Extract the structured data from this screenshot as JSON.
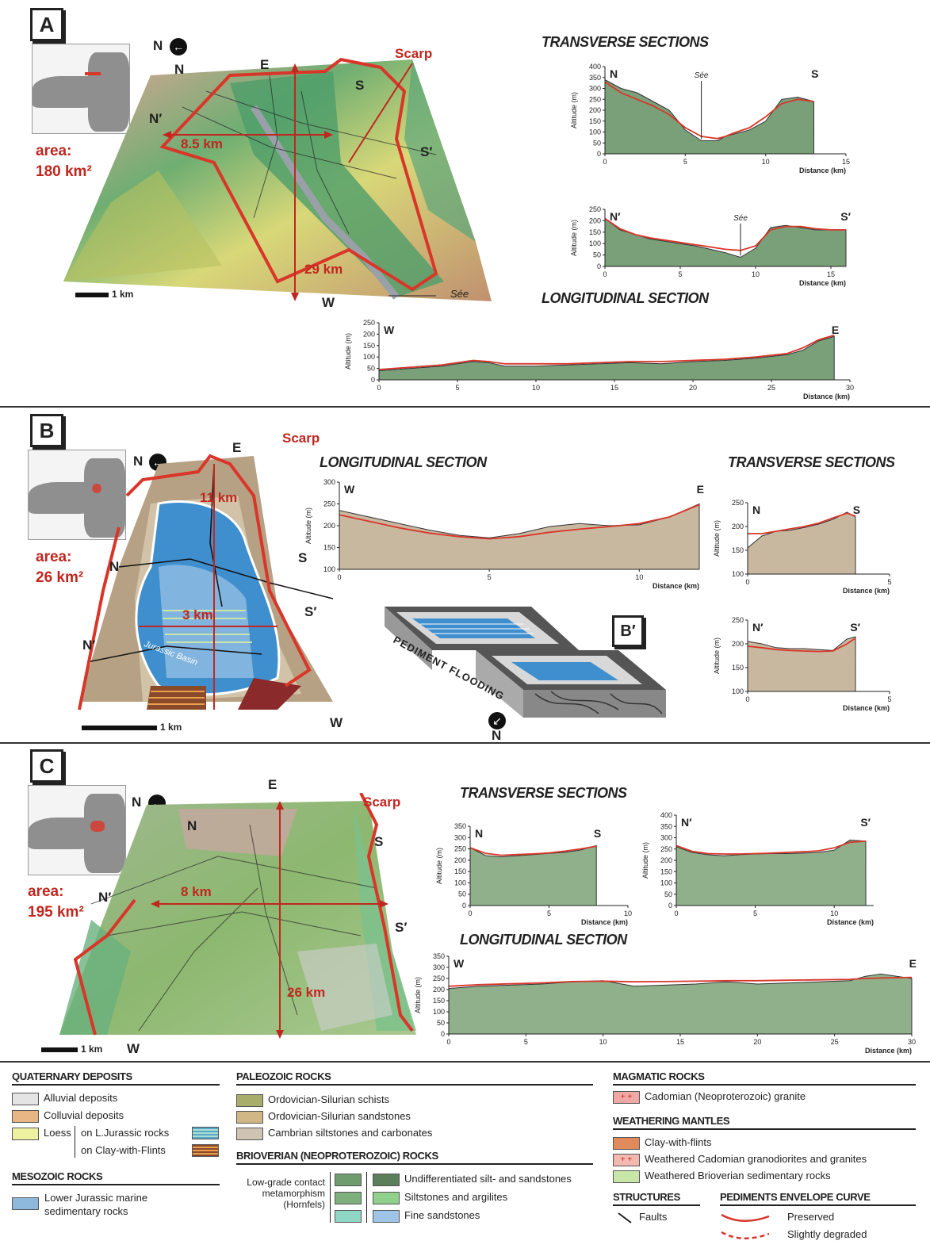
{
  "panels": {
    "a": {
      "label": "A",
      "area_line1": "area:",
      "area_line2": "180 km²",
      "north": "N",
      "scale": "1 km",
      "map_labels": {
        "N": "N",
        "E": "E",
        "S": "S",
        "N2": "N′",
        "S2": "S′",
        "W": "W",
        "scarp": "Scarp",
        "width": "8.5 km",
        "length": "29 km",
        "river": "Sée"
      },
      "transverse_title": "TRANSVERSE SECTIONS",
      "longitudinal_title": "LONGITUDINAL SECTION"
    },
    "b": {
      "label": "B",
      "area_line1": "area:",
      "area_line2": "26 km²",
      "north": "N",
      "scale": "1 km",
      "map_labels": {
        "E": "E",
        "N": "N",
        "S": "S",
        "N2": "N′",
        "S2": "S′",
        "W": "W",
        "scarp": "Scarp",
        "length": "11 km",
        "width": "3 km",
        "basin": "Jurassic Basin"
      },
      "longitudinal_title": "LONGITUDINAL SECTION",
      "transverse_title": "TRANSVERSE SECTIONS",
      "bprime": "B′",
      "pediment_flooding": "PEDIMENT FLOODING",
      "bprime_north": "N"
    },
    "c": {
      "label": "C",
      "area_line1": "area:",
      "area_line2": "195 km²",
      "north": "N",
      "scale": "1 km",
      "map_labels": {
        "E": "E",
        "N": "N",
        "S": "S",
        "N2": "N′",
        "S2": "S′",
        "W": "W",
        "scarp": "Scarp",
        "width": "8 km",
        "length": "26 km"
      },
      "transverse_title": "TRANSVERSE SECTIONS",
      "longitudinal_title": "LONGITUDINAL SECTION"
    }
  },
  "chart_data": [
    {
      "id": "a-ns",
      "type": "area",
      "ylabel": "Altitude (m)",
      "xlabel": "Distance (km)",
      "xlim": [
        0,
        15
      ],
      "ylim": [
        0,
        400
      ],
      "xticks": [
        0,
        5,
        10,
        15
      ],
      "yticks": [
        0,
        50,
        100,
        150,
        200,
        250,
        300,
        350,
        400
      ],
      "end_labels": [
        "N",
        "S"
      ],
      "annotation": "Sée",
      "x": [
        0,
        1,
        2,
        3,
        4,
        5,
        6,
        7,
        7.5,
        8,
        9,
        10,
        11,
        12,
        13
      ],
      "profile": [
        340,
        300,
        280,
        240,
        200,
        110,
        60,
        60,
        80,
        90,
        110,
        150,
        250,
        260,
        240
      ],
      "envelope": [
        330,
        280,
        250,
        220,
        180,
        120,
        80,
        70,
        80,
        95,
        120,
        170,
        230,
        250,
        240
      ]
    },
    {
      "id": "a-ns2",
      "type": "area",
      "ylabel": "Altitude (m)",
      "xlabel": "Distance (km)",
      "xlim": [
        0,
        16
      ],
      "ylim": [
        0,
        250
      ],
      "xticks": [
        0,
        5,
        10,
        15
      ],
      "yticks": [
        0,
        50,
        100,
        150,
        200,
        250
      ],
      "end_labels": [
        "N′",
        "S′"
      ],
      "annotation": "Sée",
      "x": [
        0,
        1,
        2,
        3,
        4,
        5,
        6,
        7,
        8,
        9,
        10,
        11,
        12,
        13,
        14,
        15,
        16
      ],
      "profile": [
        210,
        160,
        140,
        120,
        110,
        100,
        90,
        75,
        60,
        40,
        80,
        170,
        180,
        170,
        160,
        160,
        160
      ],
      "envelope": [
        210,
        165,
        140,
        125,
        115,
        105,
        95,
        85,
        75,
        70,
        90,
        160,
        175,
        175,
        165,
        160,
        160
      ]
    },
    {
      "id": "a-we",
      "type": "area",
      "ylabel": "Altitude (m)",
      "xlabel": "Distance (km)",
      "xlim": [
        0,
        30
      ],
      "ylim": [
        0,
        250
      ],
      "xticks": [
        0,
        5,
        10,
        15,
        20,
        25,
        30
      ],
      "yticks": [
        0,
        50,
        100,
        150,
        200,
        250
      ],
      "end_labels": [
        "W",
        "E"
      ],
      "x": [
        0,
        2,
        4,
        5,
        6,
        7,
        8,
        10,
        12,
        14,
        16,
        18,
        20,
        22,
        24,
        26,
        27,
        28,
        29
      ],
      "profile": [
        40,
        50,
        60,
        70,
        80,
        75,
        60,
        60,
        65,
        70,
        75,
        70,
        80,
        85,
        95,
        110,
        130,
        170,
        190
      ],
      "envelope": [
        45,
        55,
        65,
        75,
        85,
        80,
        70,
        70,
        70,
        75,
        80,
        80,
        85,
        90,
        100,
        115,
        140,
        175,
        195
      ]
    },
    {
      "id": "b-we",
      "type": "area",
      "ylabel": "Altitude (m)",
      "xlabel": "Distance (km)",
      "xlim": [
        0,
        12
      ],
      "ylim": [
        100,
        300
      ],
      "xticks": [
        0,
        5,
        10
      ],
      "yticks": [
        100,
        150,
        200,
        250,
        300
      ],
      "end_labels": [
        "W",
        "E"
      ],
      "x": [
        0,
        1,
        2,
        3,
        4,
        5,
        6,
        7,
        8,
        9,
        10,
        11,
        12
      ],
      "profile": [
        235,
        220,
        205,
        190,
        178,
        172,
        182,
        198,
        205,
        200,
        202,
        220,
        250
      ],
      "envelope": [
        225,
        210,
        195,
        183,
        175,
        170,
        175,
        185,
        192,
        198,
        205,
        220,
        248
      ]
    },
    {
      "id": "b-ns",
      "type": "area",
      "ylabel": "Altitude (m)",
      "xlabel": "Distance (km)",
      "xlim": [
        0,
        5
      ],
      "ylim": [
        100,
        250
      ],
      "xticks": [
        0,
        5
      ],
      "yticks": [
        100,
        150,
        200,
        250
      ],
      "end_labels": [
        "N",
        "S"
      ],
      "x": [
        0,
        0.5,
        1,
        1.5,
        2,
        2.5,
        3,
        3.5,
        3.8
      ],
      "profile": [
        155,
        180,
        190,
        192,
        198,
        205,
        215,
        230,
        220
      ],
      "envelope": [
        185,
        185,
        190,
        195,
        200,
        207,
        218,
        228,
        222
      ]
    },
    {
      "id": "b-ns2",
      "type": "area",
      "ylabel": "Altitude (m)",
      "xlabel": "Distance (km)",
      "xlim": [
        0,
        5
      ],
      "ylim": [
        100,
        250
      ],
      "xticks": [
        0,
        5
      ],
      "yticks": [
        100,
        150,
        200,
        250
      ],
      "end_labels": [
        "N′",
        "S′"
      ],
      "x": [
        0,
        0.5,
        1,
        1.5,
        2,
        2.5,
        3,
        3.5,
        3.8
      ],
      "profile": [
        205,
        200,
        192,
        190,
        190,
        188,
        186,
        210,
        215
      ],
      "envelope": [
        195,
        192,
        188,
        186,
        185,
        184,
        185,
        200,
        212
      ]
    },
    {
      "id": "c-ns",
      "type": "area",
      "ylabel": "Altitude (m)",
      "xlabel": "Distance (km)",
      "xlim": [
        0,
        10
      ],
      "ylim": [
        0,
        350
      ],
      "xticks": [
        0,
        5,
        10
      ],
      "yticks": [
        0,
        50,
        100,
        150,
        200,
        250,
        300,
        350
      ],
      "end_labels": [
        "N",
        "S"
      ],
      "x": [
        0,
        1,
        2,
        3,
        4,
        5,
        6,
        7,
        8
      ],
      "profile": [
        255,
        220,
        215,
        220,
        225,
        230,
        235,
        245,
        265
      ],
      "envelope": [
        255,
        230,
        222,
        225,
        228,
        232,
        240,
        250,
        262
      ]
    },
    {
      "id": "c-ns2",
      "type": "area",
      "ylabel": "Altitude (m)",
      "xlabel": "Distance (km)",
      "xlim": [
        0,
        12.5
      ],
      "ylim": [
        0,
        400
      ],
      "xticks": [
        0,
        5,
        10
      ],
      "yticks": [
        0,
        50,
        100,
        150,
        200,
        250,
        300,
        350,
        400
      ],
      "end_labels": [
        "N′",
        "S′"
      ],
      "x": [
        0,
        1,
        2,
        3,
        4,
        5,
        6,
        7,
        8,
        9,
        10,
        11,
        12
      ],
      "profile": [
        260,
        235,
        225,
        220,
        225,
        228,
        230,
        230,
        232,
        235,
        245,
        290,
        285
      ],
      "envelope": [
        265,
        240,
        230,
        228,
        228,
        230,
        232,
        235,
        238,
        242,
        255,
        280,
        285
      ]
    },
    {
      "id": "c-we",
      "type": "area",
      "ylabel": "Altitude (m)",
      "xlabel": "Distance (km)",
      "xlim": [
        0,
        30
      ],
      "ylim": [
        0,
        350
      ],
      "xticks": [
        0,
        5,
        10,
        15,
        20,
        25,
        30
      ],
      "yticks": [
        0,
        50,
        100,
        150,
        200,
        250,
        300,
        350
      ],
      "end_labels": [
        "W",
        "E"
      ],
      "x": [
        0,
        2,
        4,
        6,
        8,
        10,
        12,
        14,
        16,
        18,
        20,
        22,
        24,
        26,
        27,
        28,
        30
      ],
      "profile": [
        205,
        215,
        220,
        225,
        235,
        240,
        215,
        220,
        225,
        235,
        225,
        230,
        235,
        240,
        260,
        270,
        250
      ],
      "envelope": [
        215,
        222,
        226,
        230,
        236,
        238,
        235,
        236,
        238,
        240,
        240,
        242,
        244,
        246,
        250,
        252,
        255
      ]
    }
  ],
  "legend": {
    "quaternary": {
      "title": "QUATERNARY DEPOSITS",
      "items": [
        {
          "label": "Alluvial deposits",
          "color": "#e4e4e4"
        },
        {
          "label": "Colluvial deposits",
          "color": "#e8b684"
        },
        {
          "label": "Loess",
          "color": "#eef2a0"
        }
      ],
      "loess_sub1": "on L.Jurassic rocks",
      "loess_sub2": "on Clay-with-Flints"
    },
    "mesozoic": {
      "title": "MESOZOIC ROCKS",
      "item1": "Lower Jurassic marine",
      "item2": "sedimentary rocks",
      "color": "#8fb9dc"
    },
    "paleozoic": {
      "title": "PALEOZOIC ROCKS",
      "items": [
        {
          "label": "Ordovician-Silurian schists",
          "color": "#a8ad6a"
        },
        {
          "label": "Ordovician-Silurian sandstones",
          "color": "#d2b786"
        },
        {
          "label": "Cambrian siltstones and carbonates",
          "color": "#cfc4b2"
        }
      ]
    },
    "brioverian": {
      "title": "BRIOVERIAN (NEOPROTEROZOIC) ROCKS",
      "hornfels1": "Low-grade contact",
      "hornfels2": "metamorphism",
      "hornfels3": "(Hornfels)",
      "items": [
        {
          "label": "Undifferentiated silt- and sandstones",
          "color": "#5a7f5a"
        },
        {
          "label": "Siltstones and argilites",
          "color": "#8fd08a"
        },
        {
          "label": "Fine sandstones",
          "color": "#9ec4e6"
        }
      ],
      "hornfels_colors": [
        "#6e9c6e",
        "#7eb07e",
        "#8fd6c4"
      ]
    },
    "magmatic": {
      "title": "MAGMATIC ROCKS",
      "item": "Cadomian (Neoproterozoic) granite",
      "color": "#f0a8a4"
    },
    "weathering": {
      "title": "WEATHERING MANTLES",
      "items": [
        {
          "label": "Clay-with-flints",
          "color": "#e08a5c"
        },
        {
          "label": "Weathered Cadomian granodiorites and granites",
          "color": "#f4b8b0"
        },
        {
          "label": "Weathered Brioverian sedimentary rocks",
          "color": "#c8e6a8"
        }
      ]
    },
    "structures": {
      "title": "STRUCTURES",
      "item": "Faults"
    },
    "envelope": {
      "title": "PEDIMENTS ENVELOPE CURVE",
      "preserved": "Preserved",
      "degraded": "Slightly degraded",
      "color": "#d9362a"
    }
  },
  "colors": {
    "red": "#d9362a",
    "dark_green": "#5a7f5a",
    "green": "#7bb07a",
    "pink": "#f0a8a4",
    "blue": "#4a8fcf",
    "tan": "#cfc4b2"
  }
}
